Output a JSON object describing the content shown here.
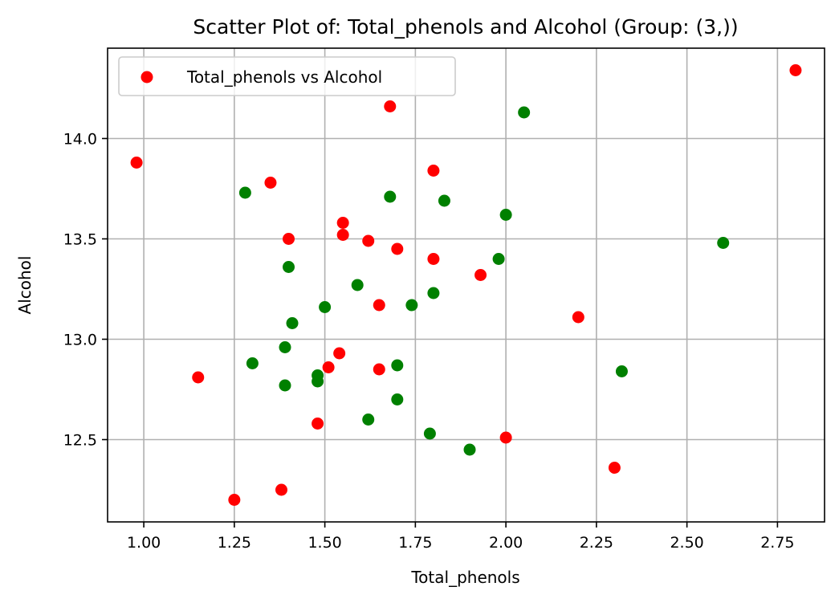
{
  "chart_data": {
    "type": "scatter",
    "title": "Scatter Plot of: Total_phenols and Alcohol (Group: (3,))",
    "xlabel": "Total_phenols",
    "ylabel": "Alcohol",
    "xlim": [
      0.9,
      2.88
    ],
    "ylim": [
      12.09,
      14.45
    ],
    "x_ticks": [
      1.0,
      1.25,
      1.5,
      1.75,
      2.0,
      2.25,
      2.5,
      2.75
    ],
    "x_tick_labels": [
      "1.00",
      "1.25",
      "1.50",
      "1.75",
      "2.00",
      "2.25",
      "2.50",
      "2.75"
    ],
    "y_ticks": [
      12.5,
      13.0,
      13.5,
      14.0
    ],
    "y_tick_labels": [
      "12.5",
      "13.0",
      "13.5",
      "14.0"
    ],
    "grid": true,
    "legend": {
      "position": "upper-left",
      "entries": [
        {
          "label": "Total_phenols vs Alcohol",
          "color": "#ff0000"
        }
      ]
    },
    "series": [
      {
        "color": "#ff0000",
        "points": [
          [
            0.98,
            13.88
          ],
          [
            1.15,
            12.81
          ],
          [
            1.25,
            12.2
          ],
          [
            1.35,
            13.78
          ],
          [
            1.38,
            12.25
          ],
          [
            1.4,
            13.5
          ],
          [
            1.48,
            12.58
          ],
          [
            1.51,
            12.86
          ],
          [
            1.54,
            12.93
          ],
          [
            1.55,
            13.58
          ],
          [
            1.55,
            13.52
          ],
          [
            1.62,
            13.49
          ],
          [
            1.65,
            13.17
          ],
          [
            1.65,
            12.85
          ],
          [
            1.68,
            14.16
          ],
          [
            1.7,
            13.45
          ],
          [
            1.8,
            13.84
          ],
          [
            1.8,
            13.4
          ],
          [
            1.93,
            13.32
          ],
          [
            2.0,
            12.51
          ],
          [
            2.2,
            13.11
          ],
          [
            2.3,
            12.36
          ],
          [
            2.8,
            14.34
          ]
        ]
      },
      {
        "color": "#008000",
        "points": [
          [
            1.28,
            13.73
          ],
          [
            1.3,
            12.88
          ],
          [
            1.39,
            12.96
          ],
          [
            1.39,
            12.77
          ],
          [
            1.4,
            13.36
          ],
          [
            1.41,
            13.08
          ],
          [
            1.48,
            12.82
          ],
          [
            1.48,
            12.79
          ],
          [
            1.5,
            13.16
          ],
          [
            1.59,
            13.27
          ],
          [
            1.62,
            12.6
          ],
          [
            1.68,
            13.71
          ],
          [
            1.7,
            12.87
          ],
          [
            1.7,
            12.7
          ],
          [
            1.74,
            13.17
          ],
          [
            1.79,
            12.53
          ],
          [
            1.8,
            13.23
          ],
          [
            1.83,
            13.69
          ],
          [
            1.9,
            12.45
          ],
          [
            1.98,
            13.4
          ],
          [
            2.0,
            13.62
          ],
          [
            2.05,
            14.13
          ],
          [
            2.32,
            12.84
          ],
          [
            2.6,
            13.48
          ]
        ]
      }
    ]
  }
}
